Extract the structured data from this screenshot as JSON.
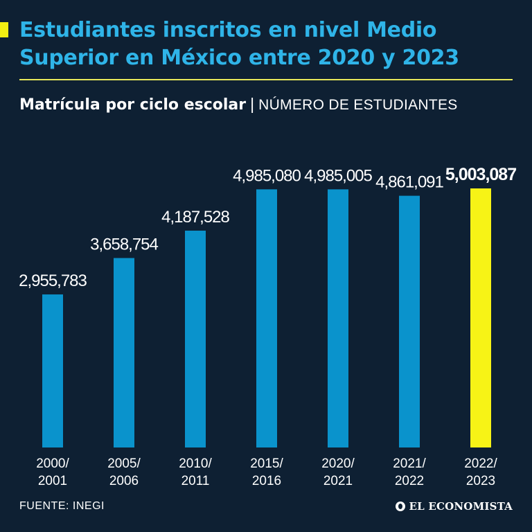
{
  "header": {
    "title_line1": "Estudiantes inscritos en nivel Medio",
    "title_line2": "Superior en México entre 2020 y 2023",
    "subtitle_strong": "Matrícula por ciclo escolar",
    "subtitle_separator": "|",
    "subtitle_light": "NÚMERO DE ESTUDIANTES"
  },
  "colors": {
    "background": "#0e2033",
    "bar": "#0a93cc",
    "highlight_bar": "#f7f316",
    "title": "#2fb4e8"
  },
  "chart_data": {
    "type": "bar",
    "title": "Matrícula por ciclo escolar",
    "ylabel": "NÚMERO DE ESTUDIANTES",
    "xlabel": "",
    "ylim": [
      0,
      5003087
    ],
    "categories": [
      [
        "2000/",
        "2001"
      ],
      [
        "2005/",
        "2006"
      ],
      [
        "2010/",
        "2011"
      ],
      [
        "2015/",
        "2016"
      ],
      [
        "2020/",
        "2021"
      ],
      [
        "2021/",
        "2022"
      ],
      [
        "2022/",
        "2023"
      ]
    ],
    "values": [
      2955783,
      3658754,
      4187528,
      4985080,
      4985005,
      4861091,
      5003087
    ],
    "labels": [
      "2,955,783",
      "3,658,754",
      "4,187,528",
      "4,985,080",
      "4,985,005",
      "4,861,091",
      "5,003,087"
    ],
    "highlight_index": 6
  },
  "footer": {
    "source": "FUENTE: INEGI",
    "logo_text": "EL ECONOMISTA"
  }
}
